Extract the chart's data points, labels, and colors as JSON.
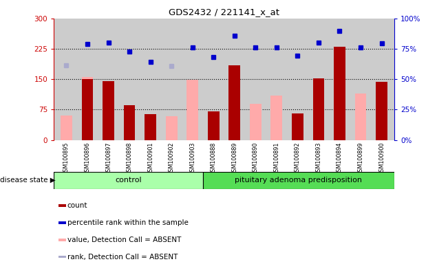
{
  "title": "GDS2432 / 221141_x_at",
  "samples": [
    "GSM100895",
    "GSM100896",
    "GSM100897",
    "GSM100898",
    "GSM100901",
    "GSM100902",
    "GSM100903",
    "GSM100888",
    "GSM100889",
    "GSM100890",
    "GSM100891",
    "GSM100892",
    "GSM100893",
    "GSM100894",
    "GSM100899",
    "GSM100900"
  ],
  "red_bars": [
    null,
    150,
    145,
    85,
    63,
    null,
    null,
    70,
    185,
    null,
    null,
    65,
    152,
    230,
    null,
    143
  ],
  "pink_bars": [
    60,
    155,
    null,
    null,
    null,
    58,
    148,
    null,
    null,
    90,
    110,
    null,
    null,
    null,
    115,
    null
  ],
  "blue_squares": [
    null,
    237,
    240,
    218,
    193,
    null,
    228,
    205,
    258,
    228,
    228,
    208,
    240,
    270,
    228,
    238
  ],
  "lightblue_squares": [
    185,
    null,
    null,
    null,
    null,
    182,
    null,
    null,
    null,
    null,
    null,
    null,
    null,
    null,
    null,
    null
  ],
  "group_split": 7,
  "control_label": "control",
  "disease_label": "pituitary adenoma predisposition",
  "disease_state_label": "disease state",
  "ylim_left": [
    0,
    300
  ],
  "ylim_right": [
    0,
    100
  ],
  "yticks_left": [
    0,
    75,
    150,
    225,
    300
  ],
  "yticks_right": [
    0,
    25,
    50,
    75,
    100
  ],
  "ytick_labels_left": [
    "0",
    "75",
    "150",
    "225",
    "300"
  ],
  "ytick_labels_right": [
    "0%",
    "25%",
    "50%",
    "75%",
    "100%"
  ],
  "hlines": [
    75,
    150,
    225
  ],
  "bar_width": 0.55,
  "red_color": "#aa0000",
  "pink_color": "#ffaaaa",
  "blue_color": "#0000cc",
  "lightblue_color": "#aaaacc",
  "bg_color": "#cccccc",
  "left_axis_color": "#cc0000",
  "right_axis_color": "#0000cc",
  "ctrl_green": "#aaffaa",
  "disease_green": "#55dd55",
  "legend_items": [
    {
      "label": "count",
      "color": "#aa0000"
    },
    {
      "label": "percentile rank within the sample",
      "color": "#0000cc"
    },
    {
      "label": "value, Detection Call = ABSENT",
      "color": "#ffaaaa"
    },
    {
      "label": "rank, Detection Call = ABSENT",
      "color": "#aaaacc"
    }
  ]
}
